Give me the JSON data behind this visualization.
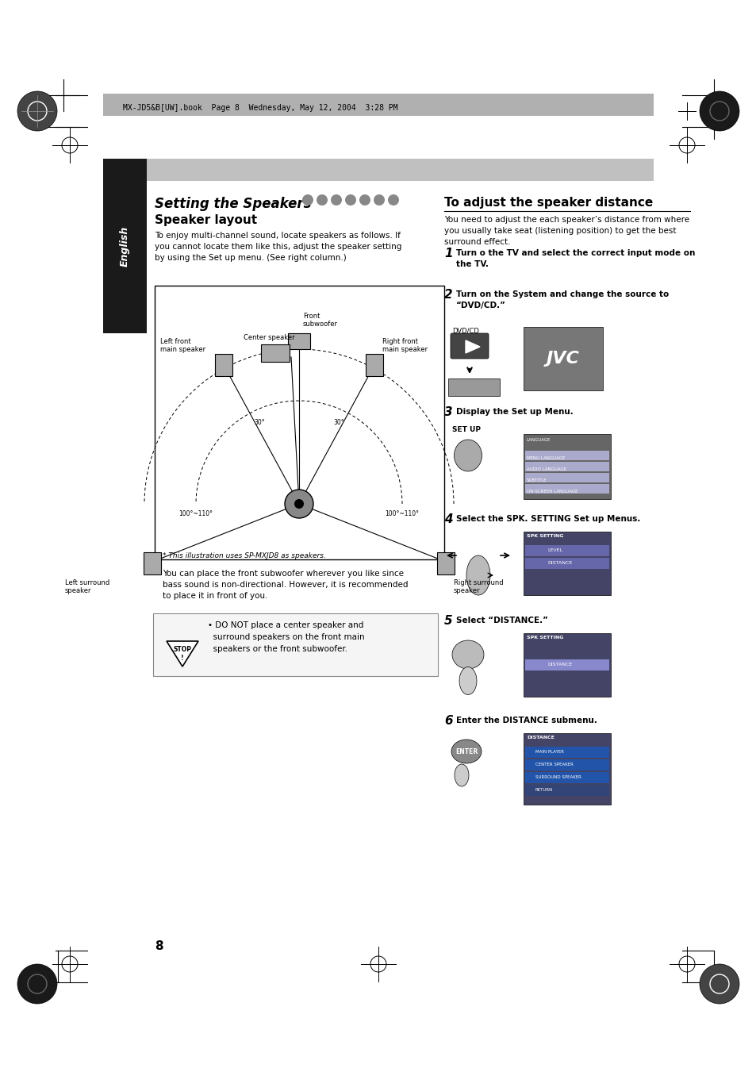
{
  "page_bg": "#ffffff",
  "header_bar_color": "#b0b0b0",
  "header_text": "MX-JD5&B[UW].book  Page 8  Wednesday, May 12, 2004  3:28 PM",
  "tab_bg": "#1a1a1a",
  "tab_text": "English",
  "section_title": "Setting the Speakers",
  "subsection_title": "Speaker layout",
  "layout_body": "To enjoy multi-channel sound, locate speakers as follows. If\nyou cannot locate them like this, adjust the speaker setting\nby using the Set up menu. (See right column.)",
  "diagram_labels": {
    "front_sub": "Front\nsubwoofer",
    "center": "Center speaker",
    "left_front": "Left front\nmain speaker",
    "right_front": "Right front\nmain speaker",
    "left_surround": "Left surround\nspeaker",
    "right_surround": "Right surround\nspeaker",
    "footnote": "* This illustration uses SP-MXJD8 as speakers."
  },
  "bullet_text": "You can place the front subwoofer wherever you like since\nbass sound is non-directional. However, it is recommended\nto place it in front of you.",
  "stop_text": "• DO NOT place a center speaker and\n  surround speakers on the front main\n  speakers or the front subwoofer.",
  "right_title": "To adjust the speaker distance",
  "right_intro": "You need to adjust the each speaker’s distance from where\nyou usually take seat (listening position) to get the best\nsurround effect.",
  "steps": [
    {
      "num": "1",
      "bold": "Turn o the TV and select the correct input mode on\nthe TV."
    },
    {
      "num": "2",
      "bold": "Turn on the System and change the source to\n“DVD/CD.”"
    },
    {
      "num": "3",
      "bold": "Display the Set up Menu.",
      "button": "SET UP"
    },
    {
      "num": "4",
      "bold": "Select the SPK. SETTING Set up Menus."
    },
    {
      "num": "5",
      "bold": "Select “DISTANCE.”"
    },
    {
      "num": "6",
      "bold": "Enter the DISTANCE submenu.",
      "button": "ENTER"
    }
  ],
  "page_number": "8"
}
